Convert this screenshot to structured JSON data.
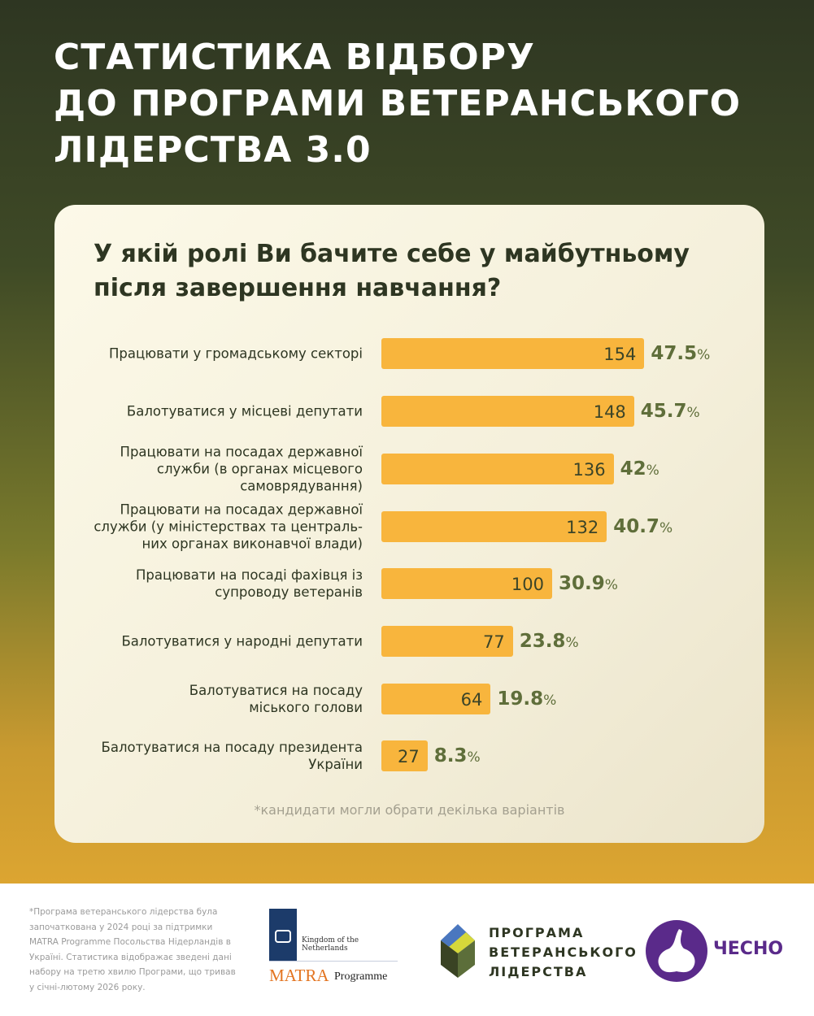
{
  "title": [
    "СТАТИСТИКА ВІДБОРУ",
    "ДО ПРОГРАМИ ВЕТЕРАНСЬКОГО",
    "ЛІДЕРСТВА 3.0"
  ],
  "chart_data": {
    "type": "bar",
    "orientation": "horizontal",
    "title": "У якій ролі  Ви бачите себе у майбутньому після завершення навчання?",
    "categories": [
      "Працювати у громадському секторі",
      "Балотуватися у місцеві депутати",
      "Працювати на посадах державної служби (в органах місцевого самоврядування)",
      "Працювати на посадах державної служби (у міністерствах та централь-них органах виконавчої влади)",
      "Працювати на посаді фахівця із супроводу ветеранів",
      "Балотуватися у народні депутати",
      "Балотуватися на посаду міського голови",
      "Балотуватися на посаду президента України"
    ],
    "label_lines": [
      [
        "Працювати у громадському секторі"
      ],
      [
        "Балотуватися у місцеві депутати"
      ],
      [
        "Працювати на посадах державної",
        "служби (в органах місцевого",
        "самоврядування)"
      ],
      [
        "Працювати на посадах державної",
        "служби (у міністерствах та централь-",
        "них органах виконавчої влади)"
      ],
      [
        "Працювати на посаді фахівця із",
        "супроводу ветеранів"
      ],
      [
        "Балотуватися у народні депутати"
      ],
      [
        "Балотуватися на посаду",
        "міського голови"
      ],
      [
        "Балотуватися на посаду президента",
        "України"
      ]
    ],
    "values": [
      154,
      148,
      136,
      132,
      100,
      77,
      64,
      27
    ],
    "percents": [
      "47.5",
      "45.7",
      "42",
      "40.7",
      "30.9",
      "23.8",
      "19.8",
      "8.3"
    ],
    "percent_sign": "%",
    "note": "*кандидати могли обрати декілька варіантів",
    "bar_color": "#f8b53d"
  },
  "footer": {
    "text": "*Програма ветеранського лідерства  була започаткована у 2024 році за підтримки MATRA Programme Посольства Нідерландів в Україні. Статистика відображає зведені дані набору на третю хвилю Програми, що тривав у січні-лютому 2026 року.",
    "matra_kingdom": "Kingdom of the Netherlands",
    "matra_name": "MATRA",
    "matra_programme": "Programme",
    "pvl_lines": [
      "ПРОГРАМА",
      "ВЕТЕРАНСЬКОГО",
      "ЛІДЕРСТВА"
    ],
    "chesno": "ЧЕСНО"
  }
}
